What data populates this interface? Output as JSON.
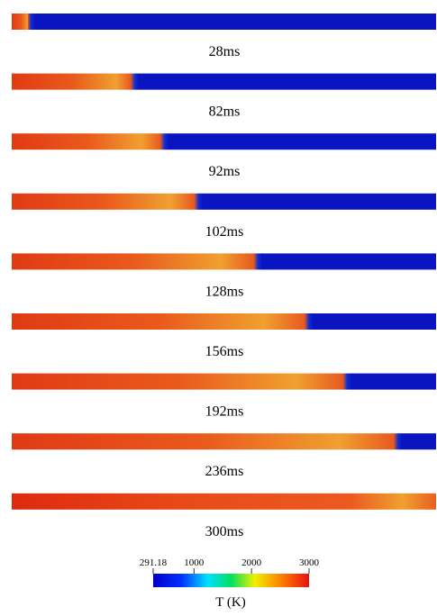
{
  "snapshots": [
    {
      "label": "28ms"
    },
    {
      "label": "82ms"
    },
    {
      "label": "92ms"
    },
    {
      "label": "102ms"
    },
    {
      "label": "128ms"
    },
    {
      "label": "156ms"
    },
    {
      "label": "192ms"
    },
    {
      "label": "236ms"
    },
    {
      "label": "300ms"
    }
  ],
  "colorbar": {
    "label": "T (K)",
    "lim": [
      291.18,
      3000
    ],
    "ticks": [
      291.18,
      1000,
      2000,
      3000
    ]
  }
}
